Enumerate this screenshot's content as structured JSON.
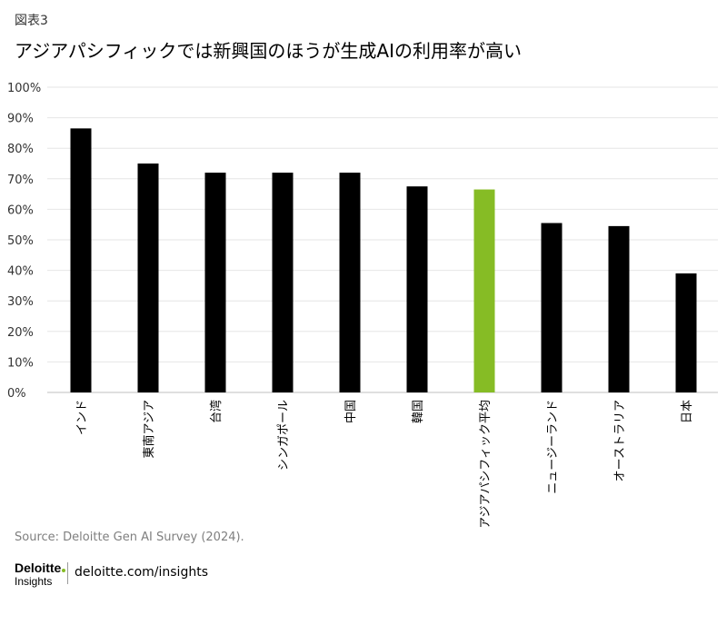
{
  "figure_label": "図表3",
  "title": "アジアパシフィックでは新興国のほうが生成AIの利用率が高い",
  "source": "Source: Deloitte Gen AI Survey (2024).",
  "brand": {
    "logo_text": "Deloitte",
    "logo_sub": "Insights",
    "site": "deloitte.com/insights",
    "accent_color": "#86bc25"
  },
  "chart_data": {
    "type": "bar",
    "categories": [
      "インド",
      "東南アジア",
      "台湾",
      "シンガポール",
      "中国",
      "韓国",
      "アジアパシフィック平均",
      "ニュージーランド",
      "オーストラリア",
      "日本"
    ],
    "values": [
      86.5,
      75,
      72,
      72,
      72,
      67.5,
      66.5,
      55.5,
      54.5,
      39
    ],
    "highlight_index": 6,
    "bar_color": "#000000",
    "highlight_color": "#86bc25",
    "ylim": [
      0,
      100
    ],
    "yticks": [
      0,
      10,
      20,
      30,
      40,
      50,
      60,
      70,
      80,
      90,
      100
    ],
    "ytick_labels": [
      "0%",
      "10%",
      "20%",
      "30%",
      "40%",
      "50%",
      "60%",
      "70%",
      "80%",
      "90%",
      "100%"
    ],
    "xlabel": "",
    "ylabel": "",
    "grid": true
  }
}
